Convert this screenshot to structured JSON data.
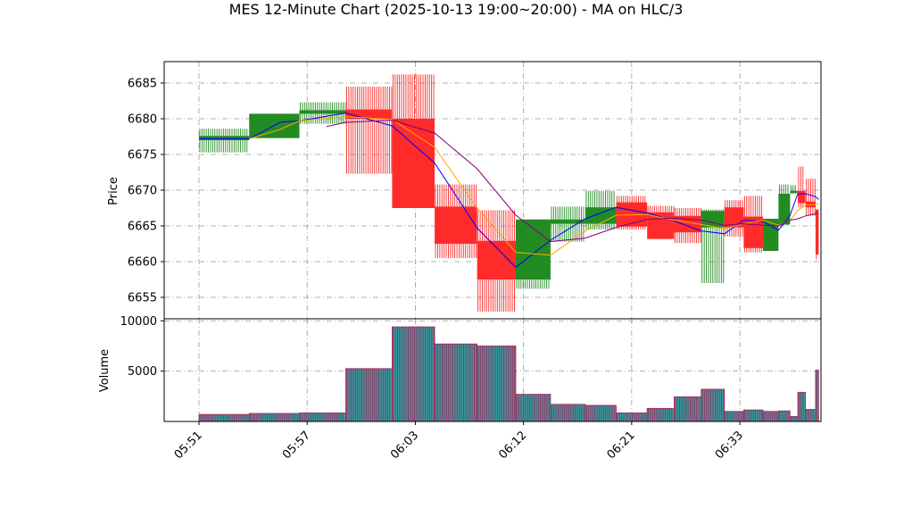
{
  "chart_data": {
    "type": "candlestick",
    "title": "MES 12-Minute Chart (2025-10-13 19:00~20:00) - MA on HLC/3",
    "price_panel": {
      "ylabel": "Price",
      "ylim": [
        6652.0,
        6688.0
      ],
      "yticks": [
        6655,
        6660,
        6665,
        6670,
        6675,
        6680,
        6685
      ],
      "grid": true
    },
    "volume_panel": {
      "ylabel": "Volume",
      "ylim": [
        0,
        10200
      ],
      "yticks": [
        5000,
        10000
      ],
      "grid": true
    },
    "xlim": [
      0,
      85
    ],
    "x_ticks": [
      {
        "x": 4.5,
        "label": "05:51"
      },
      {
        "x": 18.5,
        "label": "05:57"
      },
      {
        "x": 32.5,
        "label": "06:03"
      },
      {
        "x": 46.5,
        "label": "06:12"
      },
      {
        "x": 60.5,
        "label": "06:21"
      },
      {
        "x": 74.5,
        "label": "06:33"
      }
    ],
    "bars": [
      {
        "x0": 4.5,
        "x1": 11.0,
        "open": 6677.0,
        "close": 6677.6,
        "high": 6678.6,
        "low": 6675.3,
        "volume": 700
      },
      {
        "x0": 11.0,
        "x1": 17.5,
        "open": 6677.3,
        "close": 6680.7,
        "high": 6680.7,
        "low": 6677.3,
        "volume": 800
      },
      {
        "x0": 17.5,
        "x1": 23.5,
        "open": 6680.7,
        "close": 6681.2,
        "high": 6682.3,
        "low": 6679.3,
        "volume": 850
      },
      {
        "x0": 23.5,
        "x1": 29.5,
        "open": 6681.3,
        "close": 6680.0,
        "high": 6684.5,
        "low": 6672.3,
        "volume": 5250
      },
      {
        "x0": 29.5,
        "x1": 35.0,
        "open": 6680.0,
        "close": 6667.5,
        "high": 6686.2,
        "low": 6667.5,
        "volume": 9400
      },
      {
        "x0": 35.0,
        "x1": 40.5,
        "open": 6667.7,
        "close": 6662.5,
        "high": 6670.8,
        "low": 6660.5,
        "volume": 7700
      },
      {
        "x0": 40.5,
        "x1": 45.5,
        "open": 6662.9,
        "close": 6657.5,
        "high": 6667.2,
        "low": 6653.0,
        "volume": 7500
      },
      {
        "x0": 45.5,
        "x1": 50.0,
        "open": 6657.5,
        "close": 6665.9,
        "high": 6665.9,
        "low": 6656.2,
        "volume": 2700
      },
      {
        "x0": 50.0,
        "x1": 54.5,
        "open": 6665.3,
        "close": 6665.9,
        "high": 6667.7,
        "low": 6662.8,
        "volume": 1700
      },
      {
        "x0": 54.5,
        "x1": 58.5,
        "open": 6665.3,
        "close": 6667.6,
        "high": 6669.9,
        "low": 6664.5,
        "volume": 1600
      },
      {
        "x0": 58.5,
        "x1": 62.5,
        "open": 6668.3,
        "close": 6664.9,
        "high": 6669.2,
        "low": 6664.5,
        "volume": 850
      },
      {
        "x0": 62.5,
        "x1": 66.0,
        "open": 6666.9,
        "close": 6663.2,
        "high": 6667.8,
        "low": 6663.1,
        "volume": 1300
      },
      {
        "x0": 66.0,
        "x1": 69.5,
        "open": 6666.4,
        "close": 6664.1,
        "high": 6667.5,
        "low": 6662.6,
        "volume": 2450
      },
      {
        "x0": 69.5,
        "x1": 72.5,
        "open": 6664.8,
        "close": 6667.1,
        "high": 6667.3,
        "low": 6657.0,
        "volume": 3200
      },
      {
        "x0": 72.5,
        "x1": 75.0,
        "open": 6667.6,
        "close": 6664.8,
        "high": 6668.6,
        "low": 6663.5,
        "volume": 1000
      },
      {
        "x0": 75.0,
        "x1": 77.5,
        "open": 6666.3,
        "close": 6661.9,
        "high": 6669.2,
        "low": 6661.3,
        "volume": 1150
      },
      {
        "x0": 77.5,
        "x1": 79.5,
        "open": 6661.5,
        "close": 6666.0,
        "high": 6666.0,
        "low": 6661.5,
        "volume": 1000
      },
      {
        "x0": 79.5,
        "x1": 81.0,
        "open": 6665.2,
        "close": 6669.5,
        "high": 6670.8,
        "low": 6665.1,
        "volume": 1050
      },
      {
        "x0": 81.0,
        "x1": 82.0,
        "open": 6669.6,
        "close": 6669.9,
        "high": 6670.7,
        "low": 6669.5,
        "volume": 500
      },
      {
        "x0": 82.0,
        "x1": 83.0,
        "open": 6669.9,
        "close": 6668.2,
        "high": 6673.3,
        "low": 6667.6,
        "volume": 2900
      },
      {
        "x0": 83.0,
        "x1": 84.3,
        "open": 6668.4,
        "close": 6667.6,
        "high": 6671.6,
        "low": 6666.4,
        "volume": 1200
      },
      {
        "x0": 84.3,
        "x1": 84.7,
        "open": 6667.3,
        "close": 6661.0,
        "high": 6667.3,
        "low": 6660.3,
        "volume": 5100
      }
    ],
    "series": [
      {
        "name": "",
        "color": "#0000ff",
        "x": [
          4.5,
          11.0,
          15.0,
          17.5,
          23.5,
          29.5,
          35.0,
          40.5,
          45.5,
          50.0,
          54.5,
          58.5,
          62.5,
          66.0,
          69.5,
          72.5,
          75.0,
          77.5,
          79.5,
          81.0,
          82.0,
          83.0,
          84.3,
          84.7
        ],
        "y": [
          6677.2,
          6677.2,
          6679.5,
          6679.7,
          6680.8,
          6679.0,
          6673.8,
          6664.7,
          6659.2,
          6663.0,
          6666.0,
          6667.6,
          6666.8,
          6665.7,
          6664.3,
          6663.9,
          6665.8,
          6665.6,
          6664.4,
          6666.5,
          6669.5,
          6669.5,
          6669.1,
          6668.7
        ]
      },
      {
        "name": "",
        "color": "#ffa500",
        "x": [
          11.0,
          15.0,
          17.5,
          23.5,
          29.5,
          35.0,
          40.5,
          45.5,
          50.0,
          54.5,
          58.5,
          62.5,
          66.0,
          69.5,
          72.5,
          75.0,
          77.5,
          79.5,
          81.0,
          82.0,
          83.0,
          84.3,
          84.7
        ],
        "y": [
          6677.2,
          6678.5,
          6679.7,
          6680.3,
          6679.9,
          6676.0,
          6667.5,
          6661.3,
          6660.9,
          6664.3,
          6666.5,
          6666.6,
          6665.8,
          6665.2,
          6664.6,
          6665.3,
          6665.8,
          6665.1,
          6665.8,
          6667.2,
          6667.9,
          6668.0,
          6668.1
        ]
      },
      {
        "name": "",
        "color": "#800080",
        "x": [
          21.0,
          23.5,
          29.5,
          35.0,
          40.5,
          45.5,
          50.0,
          54.5,
          58.5,
          62.5,
          66.0,
          69.5,
          72.5,
          75.0,
          77.5,
          79.5,
          81.0,
          82.0,
          83.0,
          84.3,
          84.7
        ],
        "y": [
          6678.9,
          6679.5,
          6679.8,
          6678.0,
          6673.0,
          6666.5,
          6662.8,
          6663.3,
          6664.8,
          6665.9,
          6666.1,
          6665.8,
          6665.1,
          6665.3,
          6665.1,
          6665.0,
          6665.8,
          6666.0,
          6666.4,
          6666.7,
          6666.8
        ]
      }
    ]
  }
}
